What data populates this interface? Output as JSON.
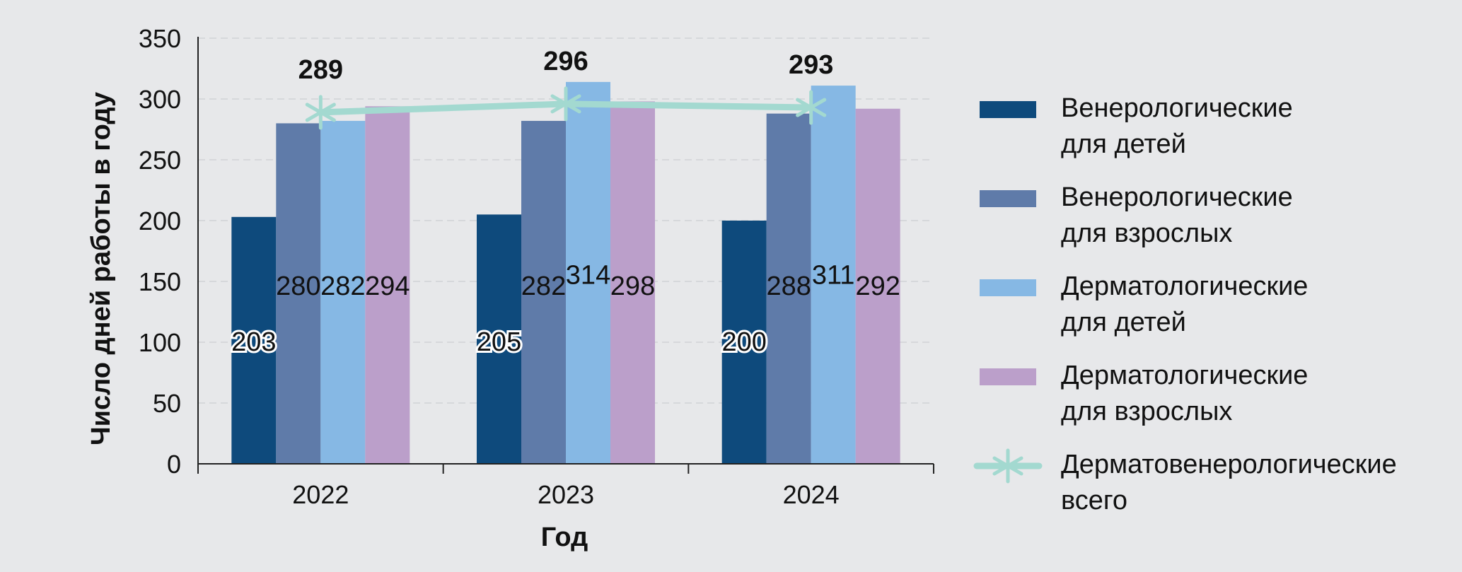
{
  "chart_data": {
    "type": "bar",
    "categories": [
      "2022",
      "2023",
      "2024"
    ],
    "xlabel": "Год",
    "ylabel": "Число дней работы в году",
    "ylim": [
      0,
      350
    ],
    "yticks": [
      0,
      50,
      100,
      150,
      200,
      250,
      300,
      350
    ],
    "grid": true,
    "legend_position": "right",
    "series": [
      {
        "name": "Венерологические для детей",
        "legend_lines": [
          "Венерологические",
          "для детей"
        ],
        "values": [
          203,
          205,
          200
        ],
        "color": "#0e4a7c"
      },
      {
        "name": "Венерологические для взрослых",
        "legend_lines": [
          "Венерологические",
          "для взрослых"
        ],
        "values": [
          280,
          282,
          288
        ],
        "color": "#5f7ba9"
      },
      {
        "name": "Дерматологические для детей",
        "legend_lines": [
          "Дерматологические",
          "для детей"
        ],
        "values": [
          282,
          314,
          311
        ],
        "color": "#86b8e4"
      },
      {
        "name": "Дерматологические для взрослых",
        "legend_lines": [
          "Дерматологические",
          "для взрослых"
        ],
        "values": [
          294,
          298,
          292
        ],
        "color": "#bb9fca"
      }
    ],
    "line_series": {
      "name": "Дерматовенерологические всего",
      "legend_lines": [
        "Дерматовенерологические",
        "всего"
      ],
      "values": [
        289,
        296,
        293
      ],
      "color": "#a3d9d0"
    }
  }
}
